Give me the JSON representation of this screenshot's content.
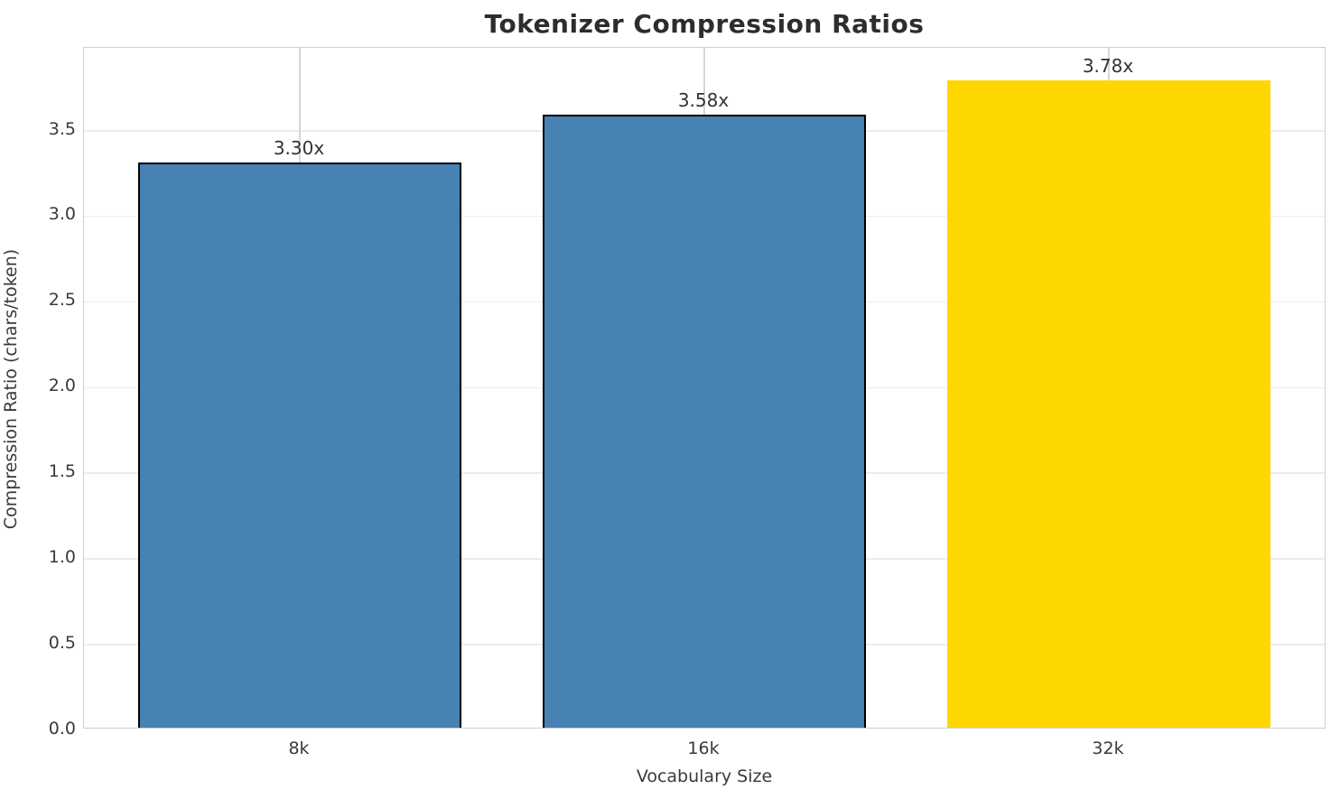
{
  "chart_data": {
    "type": "bar",
    "title": "Tokenizer Compression Ratios",
    "xlabel": "Vocabulary Size",
    "ylabel": "Compression Ratio (chars/token)",
    "categories": [
      "8k",
      "16k",
      "32k"
    ],
    "values": [
      3.3,
      3.58,
      3.78
    ],
    "bar_labels": [
      "3.30x",
      "3.58x",
      "3.78x"
    ],
    "bar_colors": [
      "#4682B4",
      "#4682B4",
      "#FFD700"
    ],
    "bar_edge_colors": [
      "#000000",
      "#000000",
      "none"
    ],
    "highlight_index": 2,
    "ylim": [
      0,
      3.98
    ],
    "yticks": [
      0.0,
      0.5,
      1.0,
      1.5,
      2.0,
      2.5,
      3.0,
      3.5
    ],
    "ytick_labels": [
      "0.0",
      "0.5",
      "1.0",
      "1.5",
      "2.0",
      "2.5",
      "3.0",
      "3.5"
    ],
    "grid": true,
    "legend": "none"
  },
  "colors": {
    "background": "#ffffff",
    "spine": "#cfcfcf",
    "hgrid": "#ededed",
    "vgrid": "#d7d7d7",
    "title_text": "#2d2d2d",
    "tick_text": "#3a3a3a",
    "bar_blue": "#4682B4",
    "bar_gold": "#FFD700",
    "bar_edge": "#000000"
  }
}
